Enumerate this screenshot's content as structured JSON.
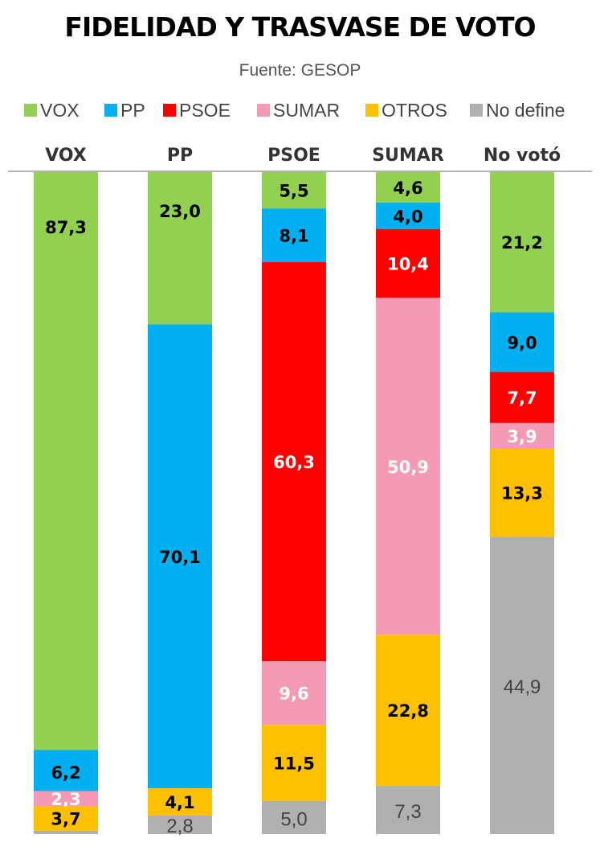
{
  "header": {
    "title": "FIDELIDAD Y TRASVASE DE VOTO",
    "source": "Fuente: GESOP"
  },
  "chart_data": {
    "type": "bar",
    "stacked": true,
    "title": "FIDELIDAD Y TRASVASE DE VOTO",
    "subtitle": "Fuente: GESOP",
    "categories": [
      "VOX",
      "PP",
      "PSOE",
      "SUMAR",
      "No votó"
    ],
    "legend": {
      "placement": "top",
      "entries": [
        "VOX",
        "PP",
        "PSOE",
        "SUMAR",
        "OTROS",
        "No define"
      ]
    },
    "series": [
      {
        "name": "VOX",
        "color": "#92d050",
        "values": [
          87.3,
          23.0,
          5.5,
          4.6,
          21.2
        ],
        "labels": [
          "87,3",
          "23,0",
          "5,5",
          "4,6",
          "21,2"
        ]
      },
      {
        "name": "PP",
        "color": "#00b0f0",
        "values": [
          6.2,
          70.1,
          8.1,
          4.0,
          9.0
        ],
        "labels": [
          "6,2",
          "70,1",
          "8,1",
          "4,0",
          "9,0"
        ]
      },
      {
        "name": "PSOE",
        "color": "#ff0000",
        "values": [
          0,
          0,
          60.3,
          10.4,
          7.7
        ],
        "labels": [
          "",
          "",
          "60,3",
          "10,4",
          "7,7"
        ]
      },
      {
        "name": "SUMAR",
        "color": "#f59ab5",
        "values": [
          2.3,
          0,
          9.6,
          50.9,
          3.9
        ],
        "labels": [
          "2,3",
          "",
          "9,6",
          "50,9",
          "3,9"
        ]
      },
      {
        "name": "OTROS",
        "color": "#ffc000",
        "values": [
          3.7,
          4.1,
          11.5,
          22.8,
          13.3
        ],
        "labels": [
          "3,7",
          "4,1",
          "11,5",
          "22,8",
          "13,3"
        ]
      },
      {
        "name": "No define",
        "color": "#b0b0b0",
        "values": [
          0.5,
          2.8,
          5.0,
          7.3,
          44.9
        ],
        "labels": [
          "",
          "2,8",
          "5,0",
          "7,3",
          "44,9"
        ]
      }
    ],
    "label_colors": {
      "VOX": "#000000",
      "PP": "#000000",
      "PSOE": "#ffffff",
      "SUMAR": "#ffffff",
      "OTROS": "#000000",
      "No define": "#444444"
    },
    "ylim": [
      0,
      100
    ],
    "grid": false
  }
}
